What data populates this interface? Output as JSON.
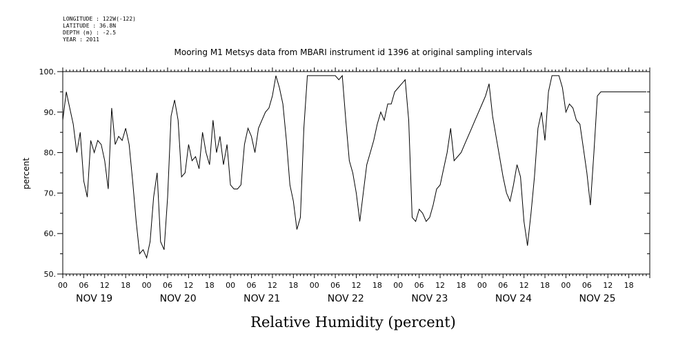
{
  "header": {
    "longitude": "LONGITUDE : 122W(-122)",
    "latitude": "LATITUDE : 36.8N",
    "depth": "DEPTH (m) : -2.5",
    "year": "YEAR : 2011"
  },
  "chart_data": {
    "type": "line",
    "title": "Mooring M1 Metsys data from MBARI instrument id 1396 at original sampling intervals",
    "xlabel": "Relative Humidity (percent)",
    "ylabel": "percent",
    "xlim_hours": [
      0,
      168
    ],
    "ylim": [
      50,
      100
    ],
    "y_ticks": [
      "50.",
      "60.",
      "70.",
      "80.",
      "90.",
      "100."
    ],
    "hour_labels": [
      "00",
      "06",
      "12",
      "18",
      "00",
      "06",
      "12",
      "18",
      "00",
      "06",
      "12",
      "18",
      "00",
      "06",
      "12",
      "18",
      "00",
      "06",
      "12",
      "18",
      "00",
      "06",
      "12",
      "18",
      "00",
      "06",
      "12",
      "18"
    ],
    "day_labels": [
      "NOV 19",
      "NOV 20",
      "NOV 21",
      "NOV 22",
      "NOV 23",
      "NOV 24",
      "NOV 25"
    ],
    "grid": false,
    "series": [
      {
        "x": [
          0,
          1,
          2,
          3,
          4,
          5,
          6,
          7,
          8,
          9,
          10,
          11,
          12,
          13,
          14,
          15,
          16,
          17,
          18,
          19,
          20,
          21,
          22,
          23,
          24,
          25,
          26,
          27,
          28,
          29,
          30,
          31,
          32,
          33,
          34,
          35,
          36,
          37,
          38,
          39,
          40,
          41,
          42,
          43,
          44,
          45,
          46,
          47,
          48,
          49,
          50,
          51,
          52,
          53,
          54,
          55,
          56,
          57,
          58,
          59,
          60,
          61,
          62,
          63,
          64,
          65,
          66,
          67,
          68,
          69,
          70,
          71,
          72,
          73,
          74,
          75,
          76,
          77,
          78,
          79,
          80,
          81,
          82,
          83,
          84,
          85,
          86,
          87,
          88,
          89,
          90,
          91,
          92,
          93,
          94,
          95,
          96,
          97,
          98,
          99,
          100,
          101,
          102,
          103,
          104,
          105,
          106,
          107,
          108,
          109,
          110,
          111,
          112,
          113,
          114,
          115,
          116,
          117,
          118,
          119,
          120,
          121,
          122,
          123,
          124,
          125,
          126,
          127,
          128,
          129,
          130,
          131,
          132,
          133,
          134,
          135,
          136,
          137,
          138,
          139,
          140,
          141,
          142,
          143,
          144,
          145,
          146,
          147,
          148,
          149,
          150,
          151,
          152,
          153,
          154,
          155,
          156,
          157,
          158,
          159,
          160,
          161,
          162,
          163,
          164,
          165,
          166,
          167
        ],
        "y": [
          88,
          95,
          91,
          87,
          80,
          85,
          73,
          69,
          83,
          80,
          83,
          82,
          78,
          71,
          91,
          82,
          84,
          83,
          86,
          82,
          73,
          63,
          55,
          56,
          54,
          58,
          69,
          75,
          58,
          56,
          69,
          89,
          93,
          88,
          74,
          75,
          82,
          78,
          79,
          76,
          85,
          80,
          77,
          88,
          80,
          84,
          77,
          82,
          72,
          71,
          71,
          72,
          82,
          86,
          84,
          80,
          86,
          88,
          90,
          91,
          94,
          99,
          96,
          92,
          83,
          72,
          68,
          61,
          64,
          86,
          99,
          99,
          99,
          99,
          99,
          99,
          99,
          99,
          99,
          98,
          99,
          88,
          78,
          75,
          70,
          63,
          70,
          77,
          80,
          83,
          87,
          90,
          88,
          92,
          92,
          95,
          96,
          97,
          98,
          88,
          64,
          63,
          66,
          65,
          63,
          64,
          67,
          71,
          72,
          76,
          80,
          86,
          78,
          79,
          80,
          82,
          84,
          86,
          88,
          90,
          92,
          94,
          97,
          89,
          84,
          79,
          74,
          70,
          68,
          72,
          77,
          74,
          63,
          57,
          65,
          74,
          86,
          90,
          83,
          95,
          99,
          99,
          99,
          96,
          90,
          92,
          91,
          88,
          87,
          81,
          75,
          67,
          80,
          94,
          95,
          95,
          95,
          95,
          95,
          95,
          95,
          95,
          95,
          95,
          95,
          95,
          95,
          95
        ]
      }
    ]
  }
}
